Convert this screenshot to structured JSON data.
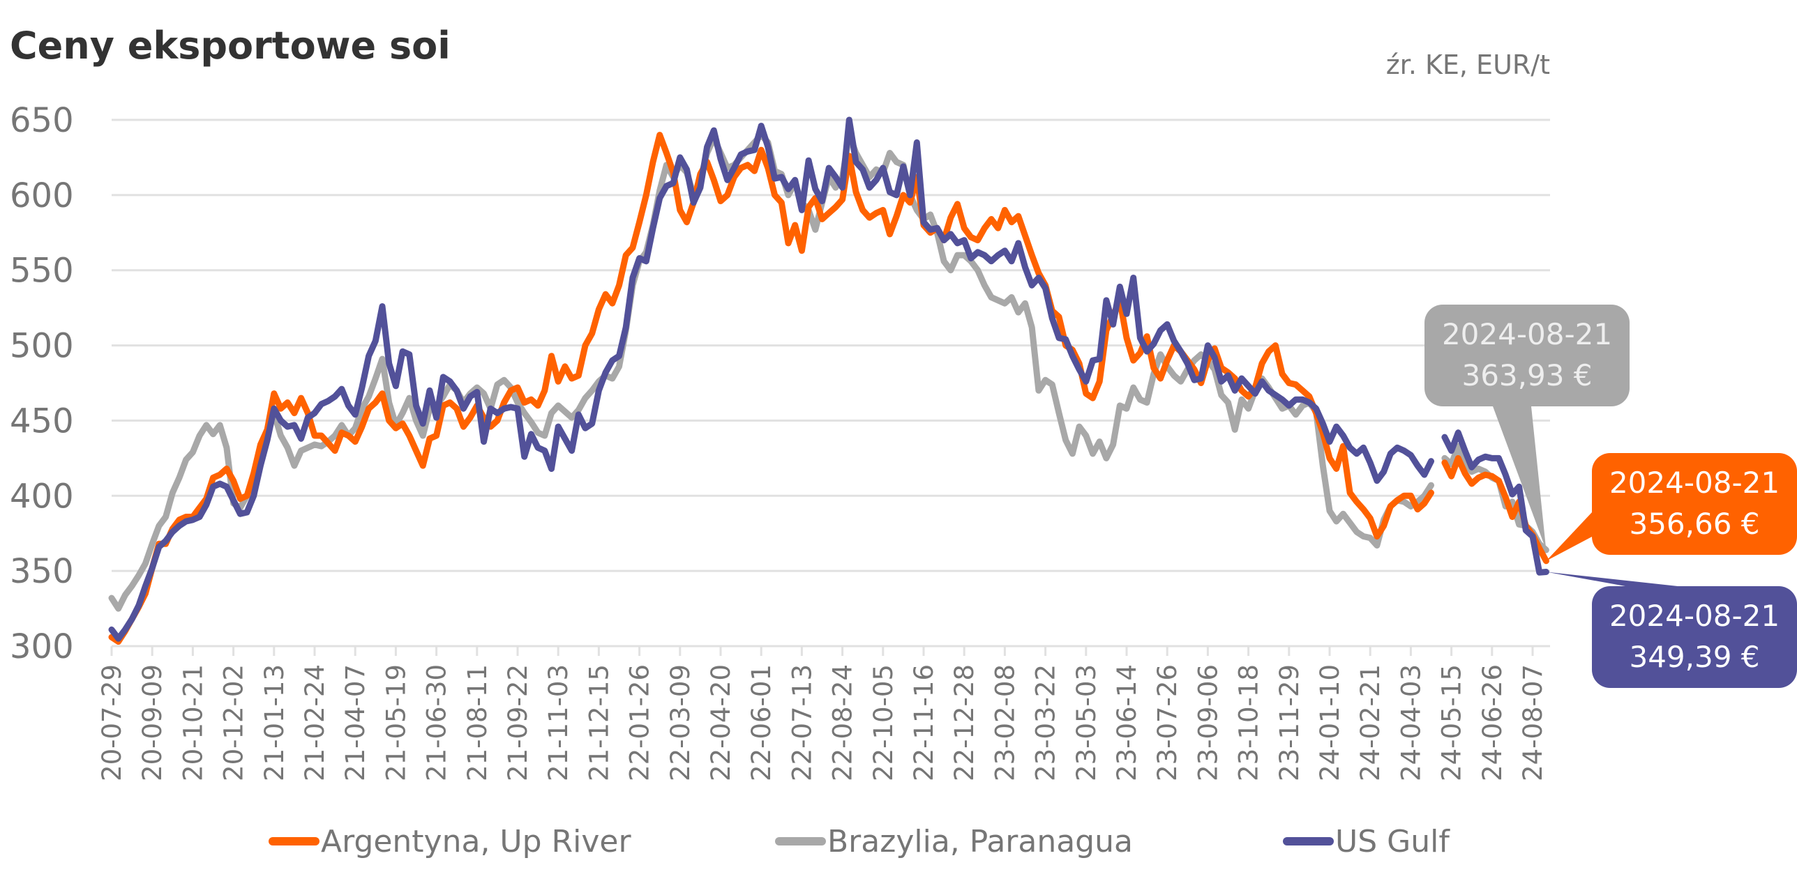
{
  "chart_data": {
    "type": "line",
    "title": "Ceny eksportowe soi",
    "subtitle": "źr. KE, EUR/t",
    "xlabel": "",
    "ylabel": "EUR/t",
    "ylim": [
      300,
      650
    ],
    "yticks": [
      "650",
      "600",
      "550",
      "500",
      "450",
      "400",
      "350",
      "300"
    ],
    "ytick_values": [
      650,
      600,
      550,
      500,
      450,
      400,
      350,
      300
    ],
    "grid": true,
    "legend_position": "bottom",
    "x_start": "2020-07-29",
    "x_end": "2024-08-21",
    "x_frequency": "weekly",
    "weeks_per_tick": 6,
    "xticks": [
      "20-07-29",
      "20-09-09",
      "20-10-21",
      "20-12-02",
      "21-01-13",
      "21-02-24",
      "21-04-07",
      "21-05-19",
      "21-06-30",
      "21-08-11",
      "21-09-22",
      "21-11-03",
      "21-12-15",
      "22-01-26",
      "22-03-09",
      "22-04-20",
      "22-06-01",
      "22-07-13",
      "22-08-24",
      "22-10-05",
      "22-11-16",
      "22-12-28",
      "23-02-08",
      "23-03-22",
      "23-05-03",
      "23-06-14",
      "23-07-26",
      "23-09-06",
      "23-10-18",
      "23-11-29",
      "24-01-10",
      "24-02-21",
      "24-04-03",
      "24-05-15",
      "24-06-26",
      "24-08-07"
    ],
    "series": [
      {
        "name": "Argentyna, Up River",
        "color": "#FF6200",
        "values": [
          306,
          303,
          310,
          318,
          326,
          335,
          352,
          368,
          368,
          378,
          384,
          386,
          386,
          392,
          398,
          412,
          414,
          418,
          410,
          398,
          400,
          415,
          434,
          444,
          468,
          458,
          462,
          455,
          465,
          455,
          440,
          440,
          435,
          430,
          442,
          440,
          436,
          446,
          458,
          462,
          468,
          450,
          445,
          448,
          440,
          430,
          420,
          438,
          440,
          460,
          462,
          458,
          446,
          452,
          460,
          452,
          446,
          450,
          462,
          470,
          472,
          462,
          464,
          460,
          470,
          493,
          476,
          486,
          478,
          480,
          500,
          508,
          524,
          534,
          528,
          540,
          560,
          565,
          582,
          600,
          622,
          640,
          628,
          615,
          590,
          582,
          595,
          614,
          622,
          610,
          596,
          600,
          612,
          618,
          620,
          616,
          630,
          618,
          600,
          595,
          568,
          580,
          563,
          592,
          598,
          584,
          588,
          592,
          597,
          626,
          602,
          590,
          585,
          588,
          590,
          574,
          586,
          600,
          595,
          612,
          580,
          575,
          578,
          570,
          585,
          594,
          578,
          572,
          570,
          578,
          584,
          578,
          590,
          582,
          586,
          573,
          560,
          548,
          540,
          523,
          519,
          500,
          497,
          488,
          468,
          465,
          476,
          510,
          520,
          530,
          505,
          490,
          495,
          506,
          485,
          478,
          490,
          500,
          496,
          490,
          484,
          475,
          490,
          498,
          485,
          482,
          478,
          470,
          466,
          472,
          488,
          496,
          500,
          481,
          475,
          474,
          470,
          466,
          455,
          442,
          425,
          418,
          433,
          402,
          396,
          391,
          385,
          373,
          380,
          393,
          397,
          400,
          400,
          391,
          395,
          402,
          null,
          422,
          413,
          425,
          415,
          408,
          412,
          414,
          413,
          410,
          399,
          386,
          396,
          380,
          374,
          365,
          356.66
        ]
      },
      {
        "name": "Brazylia, Paranagua",
        "color": "#A8A8A8",
        "values": [
          332,
          325,
          334,
          340,
          347,
          355,
          368,
          380,
          386,
          402,
          412,
          424,
          429,
          440,
          447,
          441,
          447,
          432,
          395,
          392,
          400,
          412,
          425,
          440,
          455,
          440,
          432,
          420,
          430,
          432,
          434,
          433,
          436,
          440,
          447,
          440,
          445,
          458,
          466,
          478,
          491,
          462,
          447,
          455,
          465,
          450,
          440,
          458,
          460,
          466,
          474,
          470,
          462,
          468,
          472,
          468,
          458,
          474,
          477,
          472,
          462,
          455,
          449,
          442,
          440,
          455,
          460,
          456,
          452,
          457,
          465,
          470,
          476,
          480,
          478,
          486,
          510,
          540,
          556,
          562,
          580,
          603,
          620,
          612,
          620,
          615,
          600,
          610,
          628,
          638,
          628,
          618,
          620,
          625,
          630,
          635,
          640,
          635,
          616,
          614,
          600,
          608,
          595,
          590,
          577,
          595,
          612,
          605,
          612,
          640,
          628,
          620,
          612,
          617,
          615,
          628,
          622,
          620,
          600,
          590,
          584,
          587,
          575,
          556,
          550,
          560,
          560,
          556,
          550,
          540,
          532,
          530,
          528,
          532,
          522,
          528,
          512,
          470,
          477,
          474,
          455,
          437,
          428,
          446,
          440,
          428,
          436,
          425,
          434,
          460,
          458,
          472,
          464,
          462,
          481,
          494,
          486,
          480,
          476,
          484,
          490,
          494,
          490,
          484,
          467,
          462,
          444,
          464,
          458,
          470,
          478,
          472,
          465,
          458,
          460,
          454,
          460,
          462,
          456,
          420,
          390,
          383,
          388,
          382,
          376,
          373,
          372,
          367,
          384,
          393,
          397,
          396,
          393,
          396,
          400,
          407,
          null,
          425,
          421,
          433,
          422,
          416,
          418,
          416,
          412,
          410,
          393,
          396,
          381,
          380,
          376,
          368,
          363.93
        ]
      },
      {
        "name": "US Gulf",
        "color": "#525199",
        "values": [
          311,
          305,
          311,
          318,
          327,
          340,
          352,
          366,
          370,
          376,
          380,
          383,
          384,
          386,
          394,
          406,
          408,
          406,
          397,
          388,
          389,
          400,
          420,
          437,
          458,
          450,
          446,
          447,
          438,
          452,
          455,
          461,
          463,
          466,
          471,
          460,
          454,
          472,
          493,
          503,
          526,
          488,
          473,
          496,
          494,
          460,
          448,
          470,
          452,
          479,
          476,
          470,
          458,
          466,
          469,
          436,
          458,
          455,
          458,
          459,
          458,
          426,
          441,
          432,
          430,
          418,
          446,
          438,
          430,
          454,
          445,
          448,
          470,
          482,
          490,
          493,
          512,
          545,
          558,
          556,
          578,
          598,
          606,
          608,
          625,
          617,
          595,
          605,
          632,
          643,
          624,
          610,
          618,
          627,
          629,
          630,
          646,
          632,
          611,
          612,
          604,
          610,
          590,
          623,
          604,
          596,
          618,
          612,
          605,
          650,
          622,
          617,
          605,
          610,
          618,
          602,
          600,
          619,
          600,
          635,
          582,
          577,
          578,
          570,
          574,
          568,
          570,
          558,
          562,
          560,
          556,
          560,
          563,
          556,
          568,
          552,
          540,
          545,
          538,
          518,
          505,
          504,
          493,
          484,
          476,
          490,
          491,
          530,
          514,
          539,
          521,
          545,
          505,
          496,
          501,
          510,
          514,
          503,
          496,
          488,
          477,
          478,
          500,
          492,
          476,
          480,
          470,
          478,
          473,
          468,
          476,
          470,
          467,
          464,
          460,
          464,
          464,
          462,
          458,
          448,
          436,
          446,
          440,
          432,
          428,
          432,
          422,
          410,
          416,
          428,
          432,
          430,
          427,
          420,
          414,
          423,
          null,
          439,
          430,
          442,
          430,
          419,
          424,
          426,
          425,
          425,
          414,
          401,
          406,
          377,
          373,
          349,
          349.39
        ]
      }
    ],
    "annotations": [
      {
        "series": "Brazylia, Paranagua",
        "date": "2024-08-21",
        "label": "363,93 €",
        "value": 363.93,
        "color": "#A8A8A8",
        "text_color": "#EEEEEE"
      },
      {
        "series": "Argentyna, Up River",
        "date": "2024-08-21",
        "label": "356,66 €",
        "value": 356.66,
        "color": "#FF6200",
        "text_color": "#FFFFFF"
      },
      {
        "series": "US Gulf",
        "date": "2024-08-21",
        "label": "349,39 €",
        "value": 349.39,
        "color": "#525199",
        "text_color": "#FFFFFF"
      }
    ]
  }
}
